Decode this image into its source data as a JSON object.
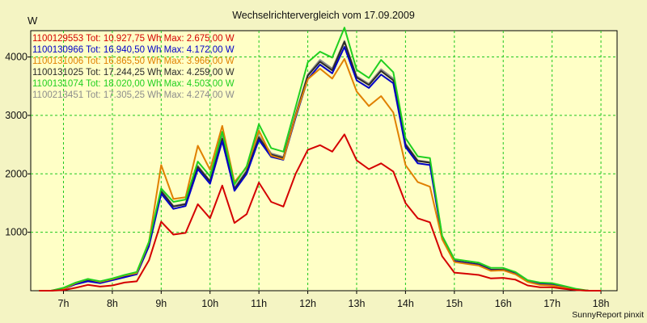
{
  "chart_data": {
    "type": "line",
    "title": "Wechselrichtervergleich vom 17.09.2009",
    "y_unit": "W",
    "footer": "SunnyReport pinxit",
    "grid": true,
    "legend_placement": "top-left",
    "x_ticks": [
      "7h",
      "8h",
      "9h",
      "10h",
      "11h",
      "12h",
      "13h",
      "14h",
      "15h",
      "16h",
      "17h",
      "18h"
    ],
    "xlim": [
      6.33,
      18.33
    ],
    "y_ticks": [
      1000,
      2000,
      3000,
      4000
    ],
    "ylim": [
      0,
      4450
    ],
    "x": [
      6.5,
      6.75,
      7.0,
      7.25,
      7.5,
      7.75,
      8.0,
      8.25,
      8.5,
      8.75,
      9.0,
      9.25,
      9.5,
      9.75,
      10.0,
      10.25,
      10.5,
      10.75,
      11.0,
      11.25,
      11.5,
      11.75,
      12.0,
      12.25,
      12.5,
      12.75,
      13.0,
      13.25,
      13.5,
      13.75,
      14.0,
      14.25,
      14.5,
      14.75,
      15.0,
      15.25,
      15.5,
      15.75,
      16.0,
      16.25,
      16.5,
      16.75,
      17.0,
      17.25,
      17.5,
      17.75,
      18.0
    ],
    "series": [
      {
        "name": "1100129553",
        "legend": "1100129553 Tot: 10.927,75 Wh Max: 2.675,00 W",
        "color": "#d40000",
        "values": [
          0,
          0,
          10,
          50,
          100,
          70,
          90,
          140,
          160,
          520,
          1180,
          960,
          990,
          1480,
          1240,
          1800,
          1160,
          1310,
          1850,
          1520,
          1440,
          2000,
          2410,
          2490,
          2380,
          2675,
          2230,
          2080,
          2180,
          2040,
          1500,
          1240,
          1170,
          590,
          310,
          290,
          270,
          210,
          220,
          190,
          90,
          60,
          60,
          30,
          10,
          0,
          0
        ]
      },
      {
        "name": "1100130966",
        "legend": "1100130966 Tot: 16.940,50 Wh Max: 4.172,00 W",
        "color": "#0000c8",
        "values": [
          0,
          0,
          30,
          110,
          160,
          130,
          180,
          230,
          280,
          760,
          1660,
          1400,
          1450,
          2080,
          1830,
          2560,
          1710,
          2000,
          2580,
          2290,
          2240,
          2960,
          3620,
          3870,
          3720,
          4172,
          3600,
          3470,
          3700,
          3550,
          2460,
          2180,
          2150,
          900,
          500,
          470,
          440,
          350,
          350,
          290,
          160,
          110,
          100,
          60,
          20,
          0,
          0
        ]
      },
      {
        "name": "1100131006",
        "legend": "1100131006 Tot: 16.865,50 Wh Max: 3.966,00 W",
        "color": "#e08000",
        "values": [
          0,
          0,
          30,
          130,
          200,
          150,
          200,
          260,
          300,
          830,
          2150,
          1570,
          1600,
          2480,
          2070,
          2820,
          1860,
          2110,
          2740,
          2310,
          2250,
          2990,
          3620,
          3800,
          3630,
          3966,
          3410,
          3160,
          3330,
          3050,
          2150,
          1860,
          1780,
          880,
          490,
          460,
          430,
          340,
          350,
          280,
          150,
          100,
          90,
          50,
          10,
          0,
          0
        ]
      },
      {
        "name": "1100131025",
        "legend": "1100131025 Tot: 17.244,25 Wh Max: 4.259,00 W",
        "color": "#2a2a2a",
        "values": [
          0,
          0,
          40,
          120,
          170,
          140,
          190,
          240,
          290,
          780,
          1700,
          1440,
          1480,
          2120,
          1870,
          2600,
          1740,
          2040,
          2620,
          2330,
          2270,
          3000,
          3680,
          3920,
          3770,
          4259,
          3650,
          3520,
          3760,
          3600,
          2500,
          2220,
          2190,
          920,
          510,
          480,
          450,
          360,
          360,
          300,
          170,
          120,
          110,
          60,
          20,
          0,
          0
        ]
      },
      {
        "name": "1100131074",
        "legend": "1100131074 Tot: 18.020,00 Wh Max: 4.503,00 W",
        "color": "#20d020",
        "values": [
          0,
          0,
          50,
          140,
          200,
          160,
          210,
          270,
          320,
          840,
          1750,
          1520,
          1560,
          2210,
          1960,
          2720,
          1820,
          2130,
          2850,
          2440,
          2380,
          3140,
          3910,
          4090,
          3990,
          4503,
          3780,
          3640,
          3950,
          3740,
          2610,
          2300,
          2270,
          940,
          540,
          510,
          480,
          390,
          390,
          320,
          180,
          140,
          130,
          80,
          30,
          0,
          0
        ]
      },
      {
        "name": "1100213451",
        "legend": "1100213451 Tot: 17.305,25 Wh Max: 4.274,00 W",
        "color": "#8c8c8c",
        "values": [
          0,
          0,
          40,
          120,
          180,
          140,
          190,
          240,
          290,
          790,
          1720,
          1450,
          1490,
          2140,
          1880,
          2640,
          1760,
          2060,
          2650,
          2350,
          2290,
          3020,
          3700,
          3950,
          3800,
          4274,
          3670,
          3540,
          3790,
          3630,
          2520,
          2230,
          2200,
          930,
          510,
          480,
          450,
          360,
          360,
          300,
          170,
          120,
          110,
          60,
          20,
          0,
          0
        ]
      }
    ]
  }
}
